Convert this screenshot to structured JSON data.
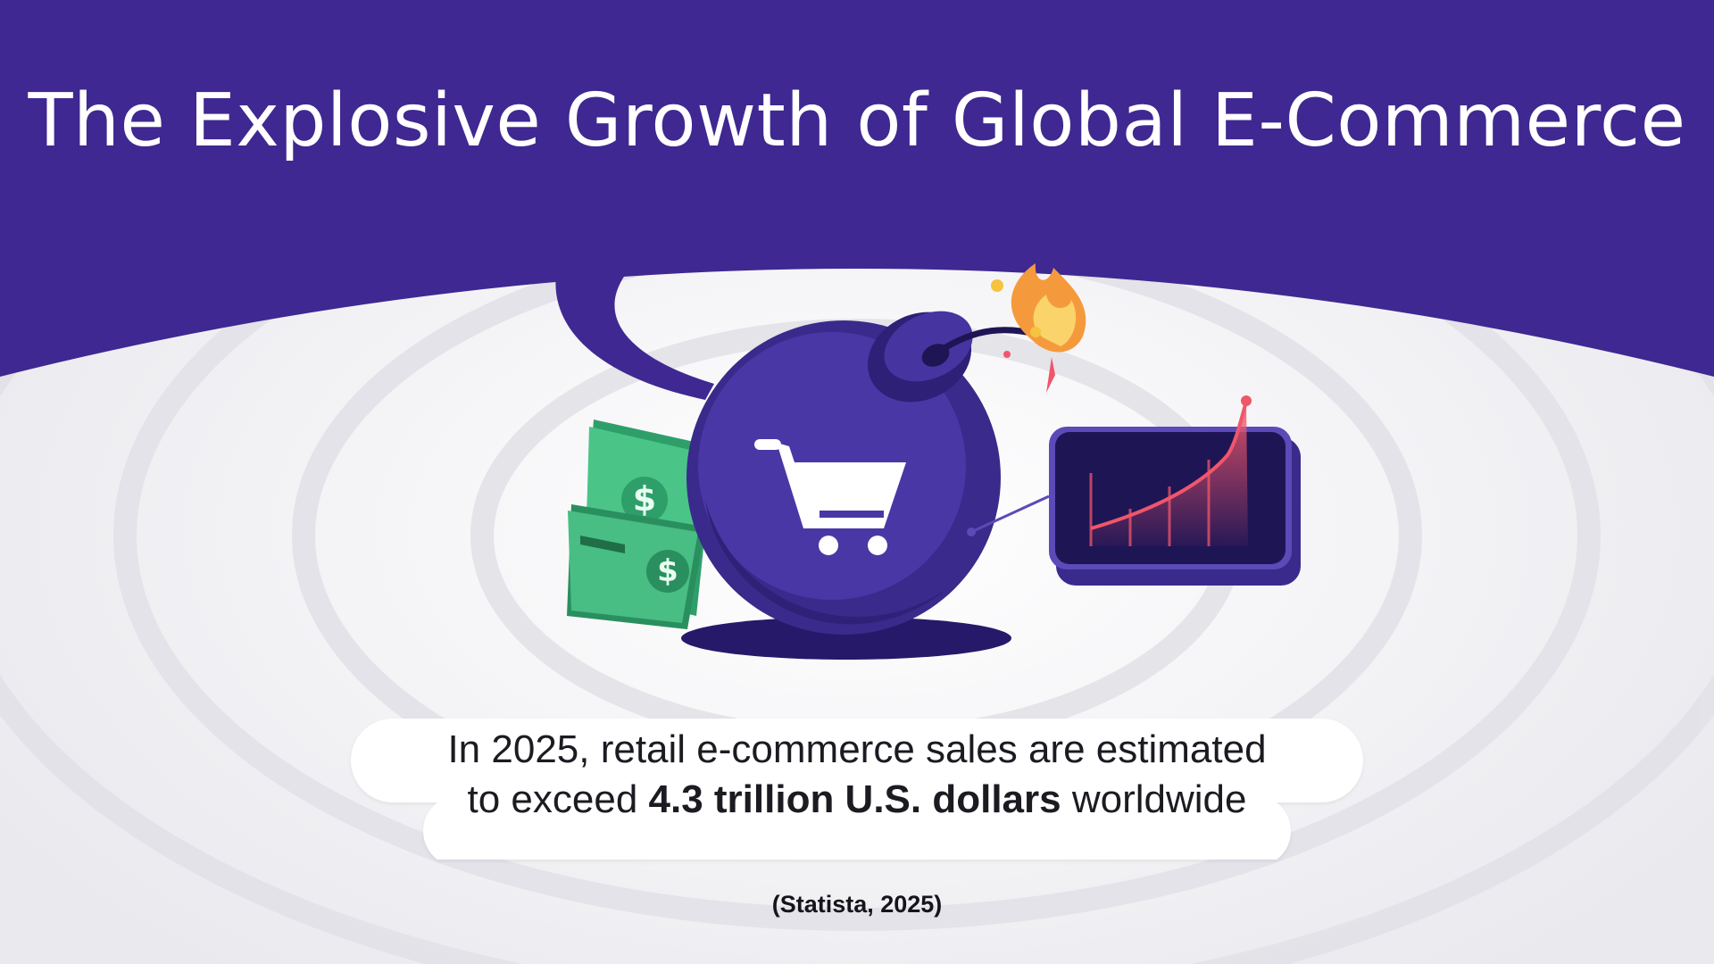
{
  "slide": {
    "title": "The Explosive Growth of Global E-Commerce",
    "caption": {
      "line1": "In 2025, retail e-commerce sales are estimated",
      "line2_prefix": "to exceed ",
      "line2_bold": "4.3 trillion U.S. dollars",
      "line2_suffix": " worldwide"
    },
    "source": "(Statista, 2025)"
  },
  "colors": {
    "header_purple": "#3f2891",
    "bomb_purple": "#3a2a8c",
    "money_green": "#3fb07a",
    "chart_line": "#f0566a",
    "flame_orange": "#f59a3c",
    "background": "#eeeef1"
  },
  "icons": {
    "bomb": "bomb-icon",
    "cart": "shopping-cart-icon",
    "money": "dollar-bills-icon",
    "chart": "growth-chart-icon",
    "flame": "flame-icon"
  }
}
